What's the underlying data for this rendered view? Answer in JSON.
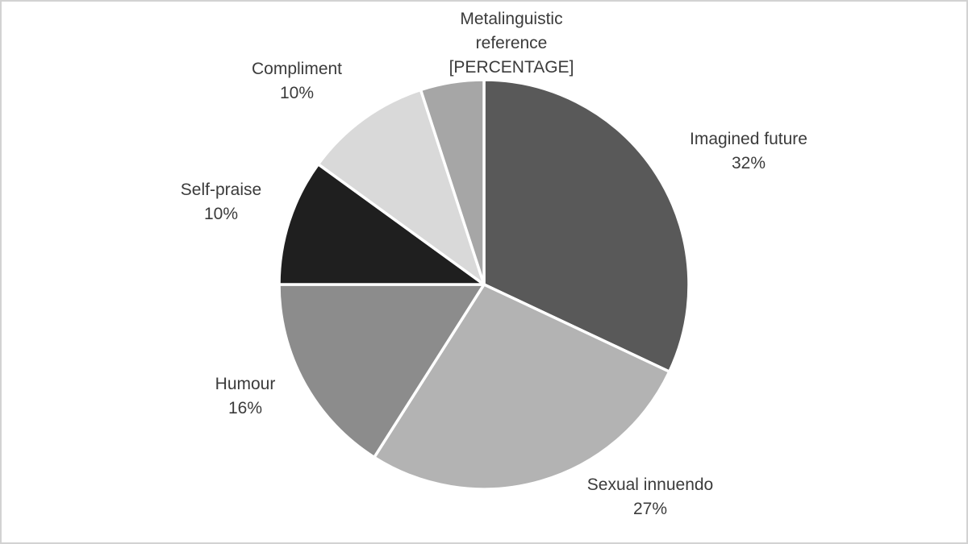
{
  "page": {
    "background_color": "#ffffff",
    "frame_border_color": "#d2d2d2"
  },
  "chart_data": {
    "type": "pie",
    "direction": "clockwise",
    "start_angle_deg": 0,
    "legend": "none",
    "labels_style": "outside, category name above percentage",
    "text_color": "#3b3b3b",
    "slices": [
      {
        "label": "Imagined future",
        "value_label": "32%",
        "percent": 32,
        "color": "#595959"
      },
      {
        "label": "Sexual innuendo",
        "value_label": "27%",
        "percent": 27,
        "color": "#b3b3b3"
      },
      {
        "label": "Humour",
        "value_label": "16%",
        "percent": 16,
        "color": "#8c8c8c"
      },
      {
        "label": "Self-praise",
        "value_label": "10%",
        "percent": 10,
        "color": "#1f1f1f"
      },
      {
        "label": "Compliment",
        "value_label": "10%",
        "percent": 10,
        "color": "#d9d9d9"
      },
      {
        "label": "Metalinguistic reference",
        "value_label": "[PERCENTAGE]",
        "percent": 5,
        "color": "#a6a6a6"
      }
    ]
  }
}
